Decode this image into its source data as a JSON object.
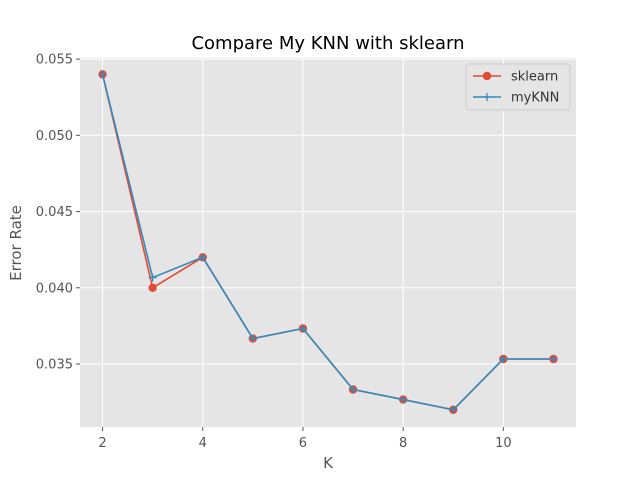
{
  "chart_data": {
    "type": "line",
    "title": "Compare My KNN  with sklearn",
    "xlabel": "K",
    "ylabel": "Error Rate",
    "x": [
      2,
      3,
      4,
      5,
      6,
      7,
      8,
      9,
      10,
      11
    ],
    "xticks": [
      2,
      4,
      6,
      8,
      10
    ],
    "yticks": [
      0.035,
      0.04,
      0.045,
      0.05,
      0.055
    ],
    "ytick_labels": [
      "0.035",
      "0.040",
      "0.045",
      "0.050",
      "0.055"
    ],
    "xlim": [
      1.55,
      11.45
    ],
    "ylim": [
      0.03087,
      0.05507
    ],
    "grid": true,
    "legend_position": "top-right",
    "series": [
      {
        "name": "sklearn",
        "color": "#e24a33",
        "marker": "circle",
        "values": [
          0.054,
          0.04,
          0.042,
          0.03667,
          0.03733,
          0.03333,
          0.03267,
          0.032,
          0.03533,
          0.03533
        ]
      },
      {
        "name": "myKNN",
        "color": "#348abd",
        "marker": "plus",
        "values": [
          0.054,
          0.04067,
          0.042,
          0.03667,
          0.03733,
          0.03333,
          0.03267,
          0.032,
          0.03533,
          0.03533
        ]
      }
    ],
    "colors": {
      "plot_background": "#e5e5e5",
      "grid": "#ffffff",
      "text": "#555555"
    }
  }
}
